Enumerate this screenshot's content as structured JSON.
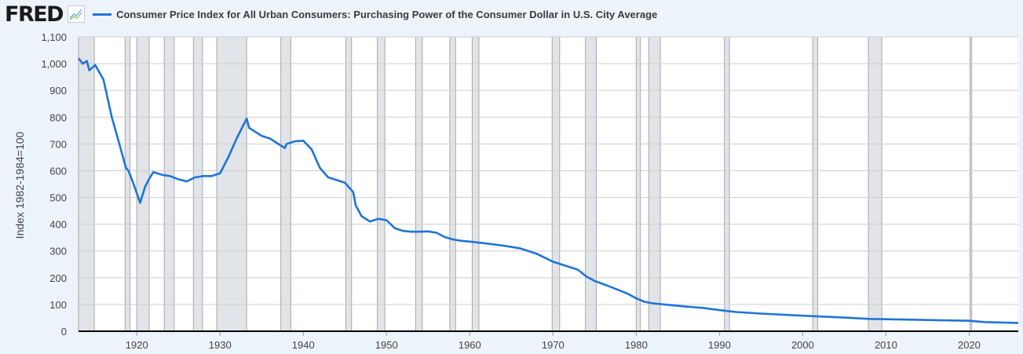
{
  "header": {
    "logo": "FRED"
  },
  "chart_data": {
    "type": "line",
    "title": "Consumer Price Index for All Urban Consumers: Purchasing Power of the Consumer Dollar in U.S. City Average",
    "xlabel": "",
    "ylabel": "Index 1982-1984=100",
    "xlim": [
      1913,
      2025.9
    ],
    "ylim": [
      0,
      1100
    ],
    "yticks": [
      0,
      100,
      200,
      300,
      400,
      500,
      600,
      700,
      800,
      900,
      1000,
      1100
    ],
    "ytick_labels": [
      "0",
      "100",
      "200",
      "300",
      "400",
      "500",
      "600",
      "700",
      "800",
      "900",
      "1,000",
      "1,100"
    ],
    "xticks": [
      1920,
      1930,
      1940,
      1950,
      1960,
      1970,
      1980,
      1990,
      2000,
      2010,
      2020
    ],
    "xtick_labels": [
      "1920",
      "1930",
      "1940",
      "1950",
      "1960",
      "1970",
      "1980",
      "1990",
      "2000",
      "2010",
      "2020"
    ],
    "grid": true,
    "legend": "top-left",
    "series_color": "#1f74d6",
    "recession_color": "#e1e4e8",
    "recessions": [
      [
        1913.0,
        1914.9
      ],
      [
        1918.6,
        1919.2
      ],
      [
        1920.0,
        1921.5
      ],
      [
        1923.3,
        1924.5
      ],
      [
        1926.8,
        1927.9
      ],
      [
        1929.6,
        1933.2
      ],
      [
        1937.3,
        1938.5
      ],
      [
        1945.1,
        1945.8
      ],
      [
        1948.9,
        1949.8
      ],
      [
        1953.5,
        1954.3
      ],
      [
        1957.6,
        1958.3
      ],
      [
        1960.3,
        1961.1
      ],
      [
        1969.9,
        1970.8
      ],
      [
        1973.9,
        1975.2
      ],
      [
        1980.0,
        1980.5
      ],
      [
        1981.5,
        1982.9
      ],
      [
        1990.6,
        1991.2
      ],
      [
        2001.2,
        2001.8
      ],
      [
        2007.9,
        2009.5
      ],
      [
        2020.1,
        2020.3
      ]
    ],
    "series": [
      {
        "x": [
          1913,
          1913.5,
          1914,
          1914.3,
          1915,
          1916,
          1917,
          1918,
          1918.7,
          1919,
          1919.5,
          1920.4,
          1921,
          1921.5,
          1922,
          1923,
          1924,
          1925,
          1926,
          1927,
          1928,
          1929,
          1930,
          1931,
          1932,
          1933.2,
          1933.5,
          1934,
          1935,
          1936,
          1937,
          1937.8,
          1938,
          1939,
          1940,
          1941,
          1942,
          1943,
          1944,
          1945,
          1946,
          1946.3,
          1947,
          1948,
          1949,
          1950,
          1951,
          1952,
          1953,
          1954,
          1955,
          1956,
          1957,
          1958,
          1959,
          1960,
          1962,
          1964,
          1966,
          1968,
          1970,
          1972,
          1973,
          1974,
          1975,
          1977,
          1979,
          1980,
          1981,
          1982,
          1984,
          1986,
          1988,
          1990,
          1992,
          1995,
          2000,
          2005,
          2008,
          2010,
          2015,
          2020,
          2022,
          2025.9
        ],
        "y": [
          1020,
          1000,
          1010,
          975,
          995,
          940,
          800,
          690,
          610,
          600,
          560,
          480,
          540,
          570,
          595,
          585,
          580,
          568,
          560,
          575,
          580,
          580,
          590,
          650,
          720,
          795,
          760,
          750,
          730,
          720,
          700,
          685,
          700,
          710,
          712,
          680,
          610,
          575,
          565,
          555,
          520,
          470,
          430,
          410,
          420,
          415,
          385,
          375,
          372,
          372,
          373,
          368,
          352,
          343,
          338,
          335,
          328,
          320,
          310,
          290,
          260,
          240,
          230,
          205,
          188,
          165,
          140,
          123,
          110,
          104,
          98,
          92,
          87,
          79,
          72,
          66,
          58,
          51,
          46,
          45,
          42,
          39,
          34,
          31
        ]
      }
    ]
  }
}
